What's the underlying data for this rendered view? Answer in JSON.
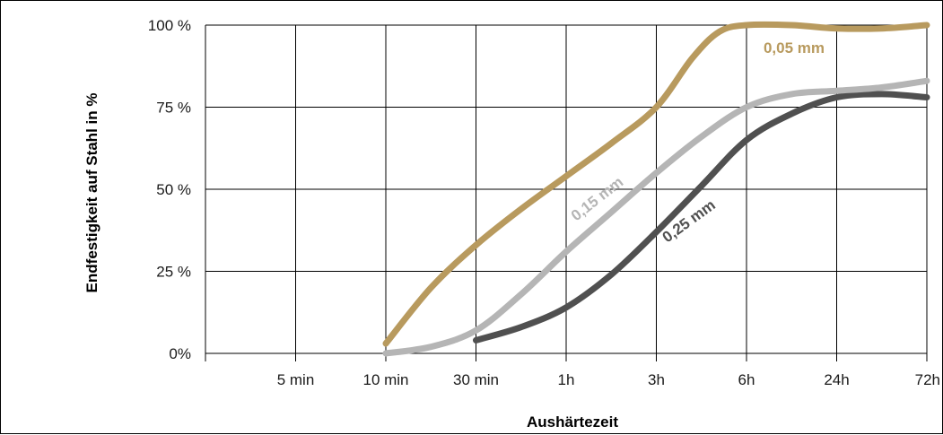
{
  "chart_data": {
    "type": "line",
    "xlabel": "Aushärtezeit",
    "ylabel": "Endfestigkeit auf Stahl in %",
    "x_categories": [
      "",
      "5 min",
      "10 min",
      "30 min",
      "1h",
      "3h",
      "6h",
      "24h",
      "72h"
    ],
    "y_ticks": [
      {
        "value": 0,
        "label": "0%"
      },
      {
        "value": 25,
        "label": "25 %"
      },
      {
        "value": 50,
        "label": "50 %"
      },
      {
        "value": 75,
        "label": "75 %"
      },
      {
        "value": 100,
        "label": "100 %"
      }
    ],
    "ylim": [
      0,
      100
    ],
    "grid": true,
    "series": [
      {
        "name": "0,05 mm",
        "color": "#b89a5e",
        "points": [
          [
            2,
            3
          ],
          [
            2.5,
            20
          ],
          [
            3,
            33
          ],
          [
            3.5,
            44
          ],
          [
            4,
            54
          ],
          [
            4.5,
            64
          ],
          [
            5,
            75
          ],
          [
            5.4,
            90
          ],
          [
            5.7,
            98
          ],
          [
            6,
            100
          ],
          [
            6.5,
            100
          ],
          [
            7,
            99
          ],
          [
            7.5,
            99
          ],
          [
            8,
            100
          ]
        ]
      },
      {
        "name": "0,15 mm",
        "color": "#b5b5b5",
        "points": [
          [
            2,
            0
          ],
          [
            2.5,
            2
          ],
          [
            3,
            7
          ],
          [
            3.5,
            18
          ],
          [
            4,
            31
          ],
          [
            4.5,
            43
          ],
          [
            5,
            55
          ],
          [
            5.5,
            66
          ],
          [
            6,
            75
          ],
          [
            6.5,
            79
          ],
          [
            7,
            80
          ],
          [
            7.5,
            81
          ],
          [
            8,
            83
          ]
        ]
      },
      {
        "name": "0,25 mm",
        "color": "#505050",
        "points": [
          [
            3,
            4
          ],
          [
            3.5,
            8
          ],
          [
            4,
            14
          ],
          [
            4.5,
            24
          ],
          [
            5,
            37
          ],
          [
            5.5,
            51
          ],
          [
            6,
            65
          ],
          [
            6.5,
            73
          ],
          [
            7,
            78
          ],
          [
            7.5,
            79
          ],
          [
            8,
            78
          ]
        ]
      }
    ]
  }
}
